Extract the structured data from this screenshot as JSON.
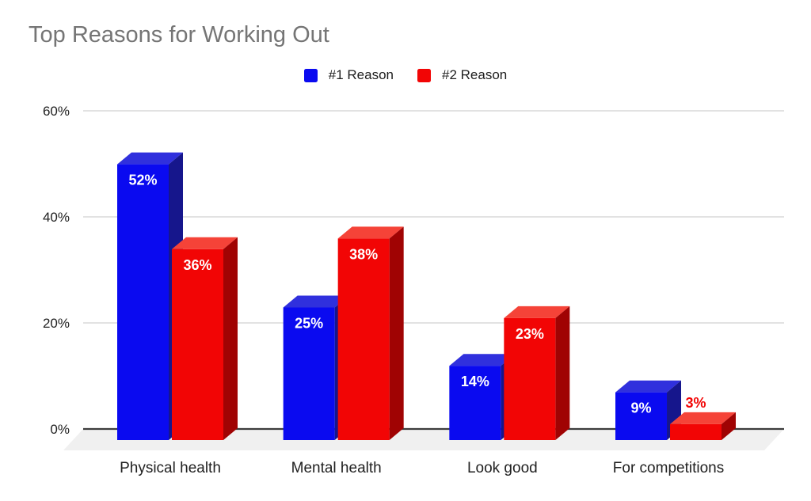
{
  "chart_data": {
    "type": "bar",
    "style": "3d-column",
    "title": "Top Reasons for Working Out",
    "categories": [
      "Physical health",
      "Mental health",
      "Look good",
      "For competitions"
    ],
    "series": [
      {
        "name": "#1 Reason",
        "values": [
          52,
          25,
          14,
          9
        ],
        "labels": [
          "52%",
          "25%",
          "14%",
          "9%"
        ],
        "color": "#0a0af0",
        "color_top": "#3030dd",
        "color_side": "#16168c"
      },
      {
        "name": "#2 Reason",
        "values": [
          36,
          38,
          23,
          3
        ],
        "labels": [
          "36%",
          "38%",
          "23%",
          "3%"
        ],
        "color": "#f20505",
        "color_top": "#f54338",
        "color_side": "#a00303"
      }
    ],
    "ylim": [
      0,
      60
    ],
    "yticks": [
      {
        "value": 0,
        "label": "0%"
      },
      {
        "value": 20,
        "label": "20%"
      },
      {
        "value": 40,
        "label": "40%"
      },
      {
        "value": 60,
        "label": "60%"
      }
    ],
    "grid": true,
    "legend_position": "top",
    "label_outside_threshold": 5
  },
  "colors": {
    "background": "#ffffff",
    "title_text": "#757575",
    "axis_text": "#212121",
    "gridline": "#d9d9d9",
    "axis_line": "#3d3d3d",
    "floor": "#f0f0f0",
    "label_inside": "#ffffff"
  }
}
